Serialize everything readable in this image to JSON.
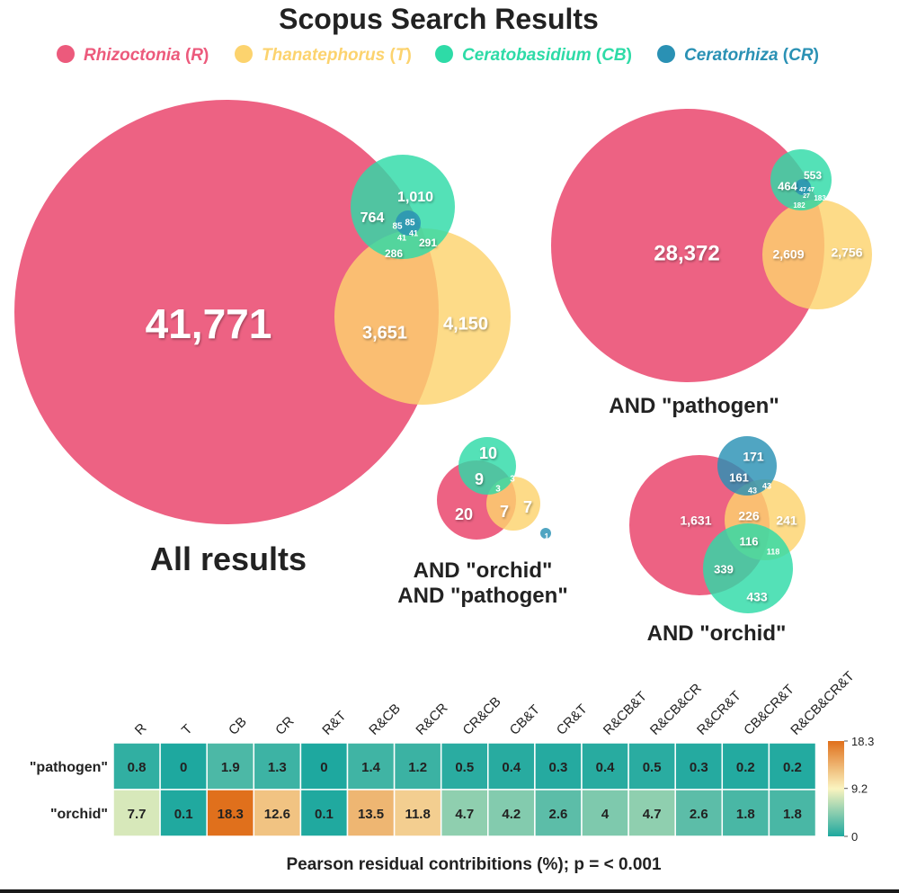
{
  "title": "Scopus Search Results",
  "colors": {
    "R": "#ec5a7c",
    "T": "#fcd36e",
    "CB": "#2edba7",
    "CR": "#2a91b4",
    "text_dark": "#222222"
  },
  "legend": [
    {
      "key": "R",
      "name": "Rhizoctonia",
      "abbr": "R"
    },
    {
      "key": "T",
      "name": "Thanatephorus",
      "abbr": "T"
    },
    {
      "key": "CB",
      "name": "Ceratobasidium",
      "abbr": "CB"
    },
    {
      "key": "CR",
      "name": "Ceratorhiza",
      "abbr": "CR"
    }
  ],
  "venn_panels": [
    {
      "id": "all",
      "caption_lines": [
        "All results"
      ],
      "regions": [
        {
          "set": "R",
          "count": "41,771"
        },
        {
          "set": "R&T",
          "count": "3,651"
        },
        {
          "set": "T",
          "count": "4,150"
        },
        {
          "set": "R&CB",
          "count": "764"
        },
        {
          "set": "CB",
          "count": "1,010"
        },
        {
          "set": "R&CB&T",
          "count": "286"
        },
        {
          "set": "CB&T",
          "count": "291"
        },
        {
          "set": "R&CB&CR",
          "count": "85"
        },
        {
          "set": "CR",
          "count": "85"
        },
        {
          "set": "R&CR&T",
          "count": "41"
        },
        {
          "set": "R&CB&CR&T",
          "count": "41"
        }
      ]
    },
    {
      "id": "pathogen",
      "caption_lines": [
        "AND \"pathogen\""
      ],
      "regions": [
        {
          "set": "R",
          "count": "28,372"
        },
        {
          "set": "R&T",
          "count": "2,609"
        },
        {
          "set": "T",
          "count": "2,756"
        },
        {
          "set": "R&CB",
          "count": "464"
        },
        {
          "set": "CB",
          "count": "553"
        },
        {
          "set": "R&CB&T",
          "count": "182"
        },
        {
          "set": "CB&T",
          "count": "183"
        },
        {
          "set": "R&CR",
          "count": "47"
        },
        {
          "set": "CR",
          "count": "47"
        },
        {
          "set": "R&CR&T",
          "count": "27"
        }
      ]
    },
    {
      "id": "orchid_pathogen",
      "caption_lines": [
        "AND \"orchid\"",
        "AND \"pathogen\""
      ],
      "regions": [
        {
          "set": "R",
          "count": "20"
        },
        {
          "set": "CB",
          "count": "10"
        },
        {
          "set": "R&CB",
          "count": "9"
        },
        {
          "set": "R&T",
          "count": "7"
        },
        {
          "set": "T",
          "count": "7"
        },
        {
          "set": "CB&T",
          "count": "3"
        },
        {
          "set": "R&CB&T",
          "count": "3"
        },
        {
          "set": "CR",
          "count": "1"
        }
      ]
    },
    {
      "id": "orchid",
      "caption_lines": [
        "AND \"orchid\""
      ],
      "regions": [
        {
          "set": "R",
          "count": "1,631"
        },
        {
          "set": "CR",
          "count": "171"
        },
        {
          "set": "R&CR",
          "count": "161"
        },
        {
          "set": "R&CR&T",
          "count": "43"
        },
        {
          "set": "CR&T",
          "count": "43"
        },
        {
          "set": "R&T",
          "count": "226"
        },
        {
          "set": "T",
          "count": "241"
        },
        {
          "set": "R&CB&T",
          "count": "116"
        },
        {
          "set": "CB&T",
          "count": "118"
        },
        {
          "set": "R&CB",
          "count": "339"
        },
        {
          "set": "CB",
          "count": "433"
        }
      ]
    }
  ],
  "chart_data": {
    "type": "heatmap",
    "columns": [
      "R",
      "T",
      "CB",
      "CR",
      "R&T",
      "R&CB",
      "R&CR",
      "CR&CB",
      "CB&T",
      "CR&T",
      "R&CB&T",
      "R&CB&CR",
      "R&CR&T",
      "CB&CR&T",
      "R&CB&CR&T"
    ],
    "rows": [
      {
        "label": "\"pathogen\"",
        "values": [
          0.8,
          0,
          1.9,
          1.3,
          0,
          1.4,
          1.2,
          0.5,
          0.4,
          0.3,
          0.4,
          0.5,
          0.3,
          0.2,
          0.2
        ]
      },
      {
        "label": "\"orchid\"",
        "values": [
          7.7,
          0.1,
          18.3,
          12.6,
          0.1,
          13.5,
          11.8,
          4.7,
          4.2,
          2.6,
          4,
          4.7,
          2.6,
          1.8,
          1.8
        ]
      }
    ],
    "colorbar": {
      "min": 0,
      "mid": 9.2,
      "max": 18.3,
      "tick_labels": [
        "18.3",
        "9.2",
        "0"
      ],
      "colors": [
        "#1ea89f",
        "#fbf4bf",
        "#e0701c"
      ]
    },
    "xlabel": "Pearson residual contribitions (%); p = < 0.001"
  }
}
